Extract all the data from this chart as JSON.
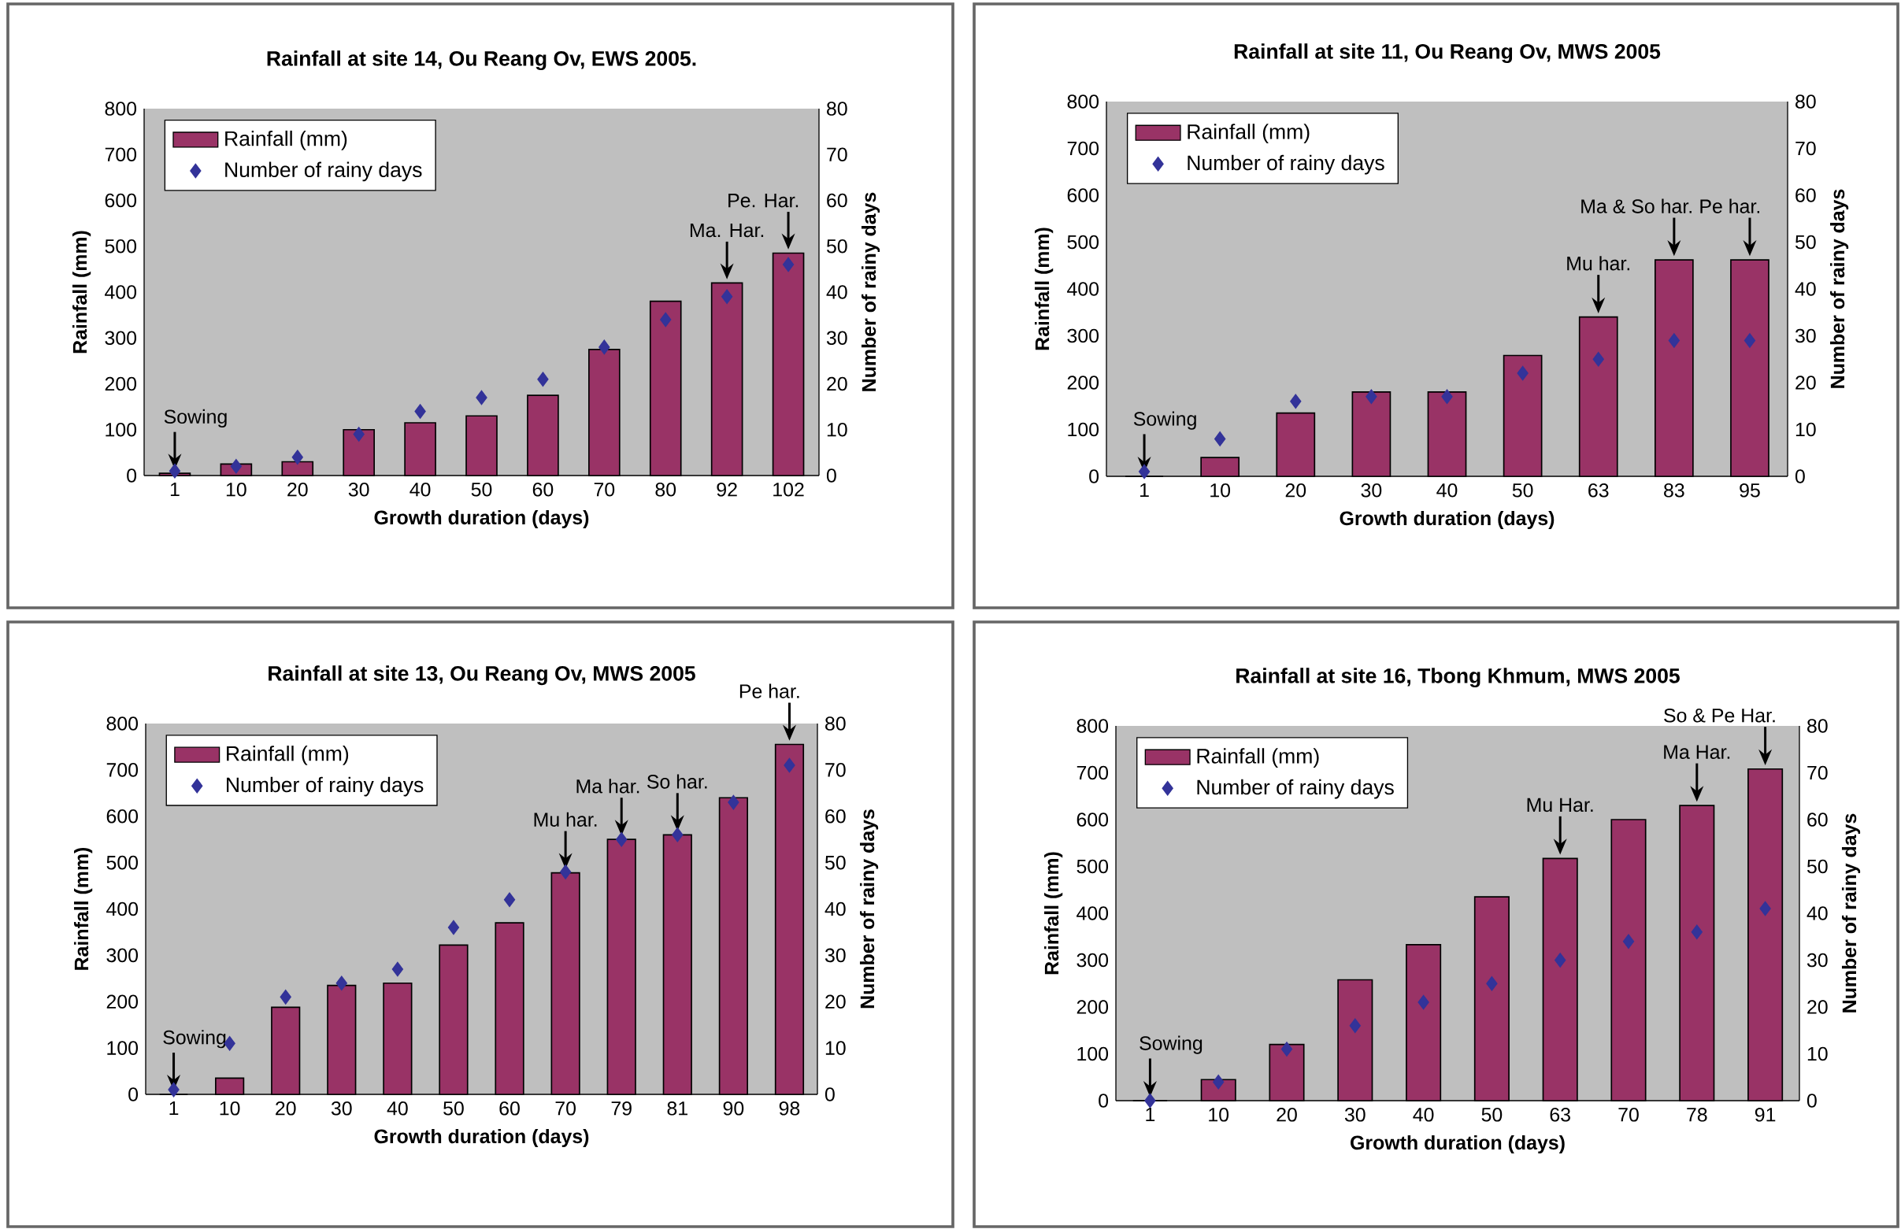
{
  "chart_data": [
    {
      "type": "bar",
      "title": "Rainfall at site 14, Ou Reang Ov, EWS 2005.",
      "xlabel": "Growth duration  (days)",
      "ylabel": "Rainfall (mm)",
      "y2label": "Number of rainy days",
      "categories": [
        "1",
        "10",
        "20",
        "30",
        "40",
        "50",
        "60",
        "70",
        "80",
        "92",
        "102"
      ],
      "series": [
        {
          "name": "Rainfall (mm)",
          "color": "#993366",
          "values": [
            5,
            25,
            30,
            100,
            115,
            130,
            175,
            275,
            380,
            420,
            485
          ]
        },
        {
          "name": "Number of rainy days",
          "type": "scatter",
          "axis": "y2",
          "marker": "diamond",
          "color": "#333399",
          "values": [
            1,
            2,
            4,
            9,
            14,
            17,
            21,
            28,
            34,
            39,
            46
          ]
        }
      ],
      "ylim": [
        0,
        800
      ],
      "yticks": [
        0,
        100,
        200,
        300,
        400,
        500,
        600,
        700,
        800
      ],
      "y2lim": [
        0,
        80
      ],
      "y2ticks": [
        0,
        10,
        20,
        30,
        40,
        50,
        60,
        70,
        80
      ],
      "legend": "top left",
      "annotations": [
        {
          "text": "Sowing",
          "x": "1",
          "y": 5
        },
        {
          "text": "Ma. Har.",
          "x": "92",
          "y": 420
        },
        {
          "text": "Pe. Har.",
          "x": "102",
          "y": 485
        }
      ]
    },
    {
      "type": "bar",
      "title": "Rainfall at site 11, Ou Reang Ov, MWS 2005",
      "xlabel": "Growth duration  (days)",
      "ylabel": "Rainfall (mm)",
      "y2label": "Number of rainy days",
      "categories": [
        "1",
        "10",
        "20",
        "30",
        "40",
        "50",
        "63",
        "83",
        "95"
      ],
      "series": [
        {
          "name": "Rainfall (mm)",
          "color": "#993366",
          "values": [
            0,
            40,
            135,
            180,
            180,
            258,
            340,
            462,
            462
          ]
        },
        {
          "name": "Number of rainy days",
          "type": "scatter",
          "axis": "y2",
          "marker": "diamond",
          "color": "#333399",
          "values": [
            1,
            8,
            16,
            17,
            17,
            22,
            25,
            29,
            29
          ]
        }
      ],
      "ylim": [
        0,
        800
      ],
      "yticks": [
        0,
        100,
        200,
        300,
        400,
        500,
        600,
        700,
        800
      ],
      "y2lim": [
        0,
        80
      ],
      "y2ticks": [
        0,
        10,
        20,
        30,
        40,
        50,
        60,
        70,
        80
      ],
      "legend": "top left",
      "annotations": [
        {
          "text": "Sowing",
          "x": "1",
          "y": 0
        },
        {
          "text": "Mu har.",
          "x": "63",
          "y": 340
        },
        {
          "text": "Ma & So har.",
          "x": "83",
          "y": 462
        },
        {
          "text": "Pe har.",
          "x": "95",
          "y": 462
        }
      ]
    },
    {
      "type": "bar",
      "title": "Rainfall at site 13, Ou Reang Ov, MWS 2005",
      "xlabel": "Growth duration  (days)",
      "ylabel": "Rainfall (mm)",
      "y2label": "Number of rainy days",
      "categories": [
        "1",
        "10",
        "20",
        "30",
        "40",
        "50",
        "60",
        "70",
        "79",
        "81",
        "90",
        "98"
      ],
      "series": [
        {
          "name": "Rainfall (mm)",
          "color": "#993366",
          "values": [
            0,
            35,
            188,
            235,
            240,
            322,
            370,
            478,
            550,
            560,
            640,
            755
          ]
        },
        {
          "name": "Number of rainy days",
          "type": "scatter",
          "axis": "y2",
          "marker": "diamond",
          "color": "#333399",
          "values": [
            1,
            11,
            21,
            24,
            27,
            36,
            42,
            48,
            55,
            56,
            63,
            71
          ]
        }
      ],
      "ylim": [
        0,
        800
      ],
      "yticks": [
        0,
        100,
        200,
        300,
        400,
        500,
        600,
        700,
        800
      ],
      "y2lim": [
        0,
        80
      ],
      "y2ticks": [
        0,
        10,
        20,
        30,
        40,
        50,
        60,
        70,
        80
      ],
      "legend": "top left",
      "annotations": [
        {
          "text": "Sowing",
          "x": "1",
          "y": 0
        },
        {
          "text": "Mu har.",
          "x": "70",
          "y": 478
        },
        {
          "text": "Ma har.",
          "x": "79",
          "y": 550
        },
        {
          "text": "So har.",
          "x": "81",
          "y": 560
        },
        {
          "text": "Pe har.",
          "x": "98",
          "y": 755
        }
      ]
    },
    {
      "type": "bar",
      "title": "Rainfall at site 16, Tbong Khmum, MWS 2005",
      "xlabel": "Growth duration  (days)",
      "ylabel": "Rainfall (mm)",
      "y2label": "Number of rainy days",
      "categories": [
        "1",
        "10",
        "20",
        "30",
        "40",
        "50",
        "63",
        "70",
        "78",
        "91"
      ],
      "series": [
        {
          "name": "Rainfall (mm)",
          "color": "#993366",
          "values": [
            0,
            45,
            120,
            258,
            333,
            435,
            517,
            600,
            630,
            708
          ]
        },
        {
          "name": "Number of rainy days",
          "type": "scatter",
          "axis": "y2",
          "marker": "diamond",
          "color": "#333399",
          "values": [
            0,
            4,
            11,
            16,
            21,
            25,
            30,
            34,
            36,
            41
          ]
        }
      ],
      "ylim": [
        0,
        800
      ],
      "yticks": [
        0,
        100,
        200,
        300,
        400,
        500,
        600,
        700,
        800
      ],
      "y2lim": [
        0,
        80
      ],
      "y2ticks": [
        0,
        10,
        20,
        30,
        40,
        50,
        60,
        70,
        80
      ],
      "legend": "top left",
      "annotations": [
        {
          "text": "Sowing",
          "x": "1",
          "y": 0
        },
        {
          "text": "Mu Har.",
          "x": "63",
          "y": 517
        },
        {
          "text": "Ma Har.",
          "x": "78",
          "y": 630
        },
        {
          "text": "So & Pe Har.",
          "x": "91",
          "y": 708
        }
      ]
    }
  ]
}
